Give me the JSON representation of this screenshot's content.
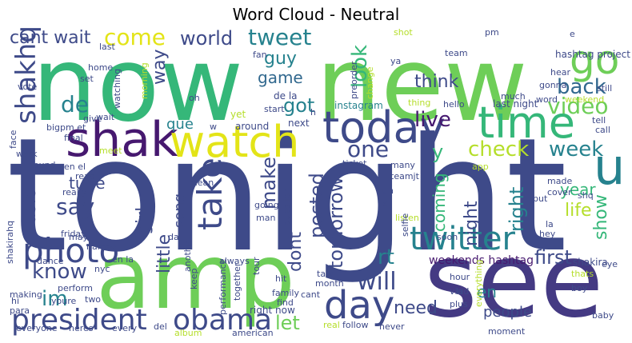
{
  "title": "Word Cloud - Neutral",
  "palette": {
    "purple": "#46186f",
    "indigo": "#3e4a89",
    "blue": "#31688e",
    "teal": "#26828e",
    "green": "#35b779",
    "lime": "#6ece58",
    "yellowgreen": "#b5de2b",
    "yellow": "#e3e418"
  },
  "words": [
    {
      "text": "tonight",
      "color": "#3e4a89"
    },
    {
      "text": "now",
      "color": "#35b779"
    },
    {
      "text": "new",
      "color": "#6ece58"
    },
    {
      "text": "see",
      "color": "#443a83"
    },
    {
      "text": "amp",
      "color": "#6ece58"
    },
    {
      "text": "today",
      "color": "#3e4a89"
    },
    {
      "text": "shak",
      "color": "#46186f"
    },
    {
      "text": "watch",
      "color": "#e3e418"
    },
    {
      "text": "time",
      "color": "#35b779"
    },
    {
      "text": "go",
      "color": "#6ece58"
    },
    {
      "text": "day",
      "color": "#3e4a89"
    },
    {
      "text": "u",
      "color": "#26828e"
    },
    {
      "text": "photo",
      "color": "#3e4a89"
    },
    {
      "text": "president",
      "color": "#3e4a89"
    },
    {
      "text": "obama",
      "color": "#3e4a89"
    },
    {
      "text": "twitter",
      "color": "#26828e"
    },
    {
      "text": "take",
      "color": "#3e4a89"
    },
    {
      "text": "shakhq",
      "color": "#3e4a89"
    },
    {
      "text": "back",
      "color": "#31688e"
    },
    {
      "text": "video",
      "color": "#6ece58"
    },
    {
      "text": "one",
      "color": "#3e4a89"
    },
    {
      "text": "live",
      "color": "#46186f"
    },
    {
      "text": "check",
      "color": "#b5de2b"
    },
    {
      "text": "week",
      "color": "#26828e"
    },
    {
      "text": "tweet",
      "color": "#26828e"
    },
    {
      "text": "look",
      "color": "#35b779"
    },
    {
      "text": "come",
      "color": "#e3e418"
    },
    {
      "text": "world",
      "color": "#3e4a89"
    },
    {
      "text": "cant wait",
      "color": "#3e4a89"
    },
    {
      "text": "guy",
      "color": "#26828e"
    },
    {
      "text": "game",
      "color": "#31688e"
    },
    {
      "text": "got",
      "color": "#26828e"
    },
    {
      "text": "think",
      "color": "#3e4a89"
    },
    {
      "text": "way",
      "color": "#3e4a89"
    },
    {
      "text": "de",
      "color": "#26828e"
    },
    {
      "text": "que",
      "color": "#26828e"
    },
    {
      "text": "music",
      "color": "#3e4a89"
    },
    {
      "text": "say",
      "color": "#3e4a89"
    },
    {
      "text": "know",
      "color": "#3e4a89"
    },
    {
      "text": "im",
      "color": "#26828e"
    },
    {
      "text": "tune",
      "color": "#3e4a89"
    },
    {
      "text": "girl",
      "color": "#3e4a89"
    },
    {
      "text": "song",
      "color": "#3e4a89"
    },
    {
      "text": "little",
      "color": "#3e4a89"
    },
    {
      "text": "make",
      "color": "#3e4a89"
    },
    {
      "text": "dont",
      "color": "#3e4a89"
    },
    {
      "text": "posted",
      "color": "#3e4a89"
    },
    {
      "text": "tomorrow",
      "color": "#3e4a89"
    },
    {
      "text": "rt",
      "color": "#26828e"
    },
    {
      "text": "will",
      "color": "#3e4a89"
    },
    {
      "text": "let",
      "color": "#6ece58"
    },
    {
      "text": "need",
      "color": "#3e4a89"
    },
    {
      "text": "coming",
      "color": "#35b779"
    },
    {
      "text": "y",
      "color": "#35b779"
    },
    {
      "text": "night",
      "color": "#3e4a89"
    },
    {
      "text": "right",
      "color": "#26828e"
    },
    {
      "text": "first",
      "color": "#3e4a89"
    },
    {
      "text": "year",
      "color": "#35b779"
    },
    {
      "text": "life",
      "color": "#b5de2b"
    },
    {
      "text": "show",
      "color": "#35b779"
    },
    {
      "text": "en",
      "color": "#26828e"
    },
    {
      "text": "people",
      "color": "#3e4a89"
    },
    {
      "text": "weekends hashtag",
      "color": "#46186f"
    },
    {
      "text": "hashtag project",
      "color": "#3e4a89"
    },
    {
      "text": "last night",
      "color": "#3e4a89"
    },
    {
      "text": "instagram",
      "color": "#26828e"
    },
    {
      "text": "de la",
      "color": "#3e4a89"
    },
    {
      "text": "right now",
      "color": "#3e4a89"
    },
    {
      "text": "shakira",
      "color": "#3e4a89"
    },
    {
      "text": "friday",
      "color": "#3e4a89"
    },
    {
      "text": "vote",
      "color": "#3e4a89"
    },
    {
      "text": "watching",
      "color": "#3e4a89"
    },
    {
      "text": "set",
      "color": "#3e4a89"
    },
    {
      "text": "give",
      "color": "#3e4a89"
    },
    {
      "text": "wait",
      "color": "#3e4a89"
    },
    {
      "text": "face",
      "color": "#3e4a89"
    },
    {
      "text": "bigpm et",
      "color": "#3e4a89"
    },
    {
      "text": "final",
      "color": "#3e4a89"
    },
    {
      "text": "work",
      "color": "#3e4a89"
    },
    {
      "text": "found",
      "color": "#3e4a89"
    },
    {
      "text": "meet",
      "color": "#b5de2b"
    },
    {
      "text": "around",
      "color": "#3e4a89"
    },
    {
      "text": "next",
      "color": "#3e4a89"
    },
    {
      "text": "yet",
      "color": "#b5de2b"
    },
    {
      "text": "mean",
      "color": "#3e4a89"
    },
    {
      "text": "going",
      "color": "#3e4a89"
    },
    {
      "text": "question",
      "color": "#3e4a89"
    },
    {
      "text": "man",
      "color": "#3e4a89"
    },
    {
      "text": "ticket",
      "color": "#3e4a89"
    },
    {
      "text": "many",
      "color": "#3e4a89"
    },
    {
      "text": "teamjt",
      "color": "#3e4a89"
    },
    {
      "text": "app",
      "color": "#b5de2b"
    },
    {
      "text": "made",
      "color": "#3e4a89"
    },
    {
      "text": "cover",
      "color": "#3e4a89"
    },
    {
      "text": "shq",
      "color": "#3e4a89"
    },
    {
      "text": "put",
      "color": "#3e4a89"
    },
    {
      "text": "call",
      "color": "#3e4a89"
    },
    {
      "text": "tell",
      "color": "#3e4a89"
    },
    {
      "text": "hey",
      "color": "#3e4a89"
    },
    {
      "text": "la",
      "color": "#3e4a89"
    },
    {
      "text": "eye",
      "color": "#3e4a89"
    },
    {
      "text": "thats",
      "color": "#b5de2b"
    },
    {
      "text": "boy",
      "color": "#3e4a89"
    },
    {
      "text": "baby",
      "color": "#3e4a89"
    },
    {
      "text": "hour",
      "color": "#3e4a89"
    },
    {
      "text": "kid",
      "color": "#3e4a89"
    },
    {
      "text": "plus",
      "color": "#3e4a89"
    },
    {
      "text": "via",
      "color": "#3e4a89"
    },
    {
      "text": "moment",
      "color": "#3e4a89"
    },
    {
      "text": "everything",
      "color": "#b5de2b"
    },
    {
      "text": "follow",
      "color": "#3e4a89"
    },
    {
      "text": "never",
      "color": "#3e4a89"
    },
    {
      "text": "real",
      "color": "#b5de2b"
    },
    {
      "text": "month",
      "color": "#3e4a89"
    },
    {
      "text": "family",
      "color": "#3e4a89"
    },
    {
      "text": "find",
      "color": "#3e4a89"
    },
    {
      "text": "talk",
      "color": "#3e4a89"
    },
    {
      "text": "cant",
      "color": "#3e4a89"
    },
    {
      "text": "hit",
      "color": "#3e4a89"
    },
    {
      "text": "tour",
      "color": "#3e4a89"
    },
    {
      "text": "together",
      "color": "#3e4a89"
    },
    {
      "text": "performance",
      "color": "#3e4a89"
    },
    {
      "text": "keep",
      "color": "#3e4a89"
    },
    {
      "text": "always",
      "color": "#3e4a89"
    },
    {
      "text": "american",
      "color": "#3e4a89"
    },
    {
      "text": "album",
      "color": "#b5de2b"
    },
    {
      "text": "del",
      "color": "#3e4a89"
    },
    {
      "text": "every",
      "color": "#3e4a89"
    },
    {
      "text": "heres",
      "color": "#3e4a89"
    },
    {
      "text": "everyone",
      "color": "#3e4a89"
    },
    {
      "text": "two",
      "color": "#3e4a89"
    },
    {
      "text": "perform",
      "color": "#3e4a89"
    },
    {
      "text": "youre",
      "color": "#3e4a89"
    },
    {
      "text": "making",
      "color": "#3e4a89"
    },
    {
      "text": "para",
      "color": "#3e4a89"
    },
    {
      "text": "hi",
      "color": "#3e4a89"
    },
    {
      "text": "dance",
      "color": "#3e4a89"
    },
    {
      "text": "name",
      "color": "#3e4a89"
    },
    {
      "text": "nyc",
      "color": "#3e4a89"
    },
    {
      "text": "en la",
      "color": "#3e4a89"
    },
    {
      "text": "da",
      "color": "#3e4a89"
    },
    {
      "text": "another",
      "color": "#3e4a89"
    },
    {
      "text": "may",
      "color": "#3e4a89"
    },
    {
      "text": "really",
      "color": "#3e4a89"
    },
    {
      "text": "read",
      "color": "#3e4a89"
    },
    {
      "text": "en el",
      "color": "#3e4a89"
    },
    {
      "text": "shakirahq",
      "color": "#3e4a89"
    },
    {
      "text": "start",
      "color": "#3e4a89"
    },
    {
      "text": "pm",
      "color": "#3e4a89"
    },
    {
      "text": "team",
      "color": "#3e4a89"
    },
    {
      "text": "gonna",
      "color": "#3e4a89"
    },
    {
      "text": "hear",
      "color": "#3e4a89"
    },
    {
      "text": "weekend",
      "color": "#b5de2b"
    },
    {
      "text": "still",
      "color": "#3e4a89"
    },
    {
      "text": "word",
      "color": "#3e4a89"
    },
    {
      "text": "much",
      "color": "#3e4a89"
    },
    {
      "text": "preorder",
      "color": "#3e4a89"
    },
    {
      "text": "change",
      "color": "#b5de2b"
    },
    {
      "text": "hello",
      "color": "#3e4a89"
    },
    {
      "text": "thing",
      "color": "#b5de2b"
    },
    {
      "text": "ya",
      "color": "#3e4a89"
    },
    {
      "text": "shot",
      "color": "#b5de2b"
    },
    {
      "text": "fan",
      "color": "#3e4a89"
    },
    {
      "text": "morning",
      "color": "#b5de2b"
    },
    {
      "text": "home",
      "color": "#3e4a89"
    },
    {
      "text": "last",
      "color": "#3e4a89"
    },
    {
      "text": "oh",
      "color": "#3e4a89"
    },
    {
      "text": "w",
      "color": "#3e4a89"
    },
    {
      "text": "h",
      "color": "#3e4a89"
    },
    {
      "text": "un",
      "color": "#3e4a89"
    },
    {
      "text": "x",
      "color": "#3e4a89"
    },
    {
      "text": "listen",
      "color": "#b5de2b"
    },
    {
      "text": "soon",
      "color": "#3e4a89"
    },
    {
      "text": "selfie",
      "color": "#3e4a89"
    },
    {
      "text": "e",
      "color": "#3e4a89"
    }
  ]
}
